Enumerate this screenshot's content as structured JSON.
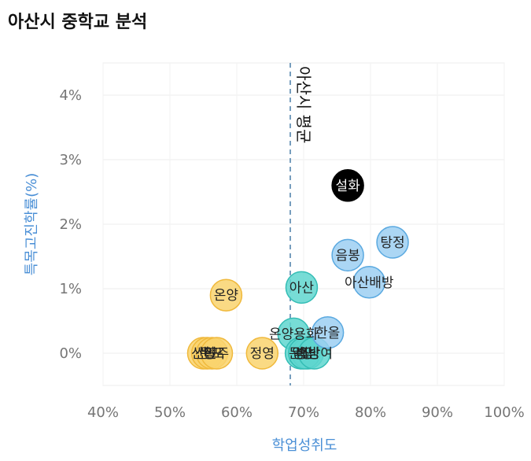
{
  "chart_data": {
    "type": "scatter",
    "title": "아산시 중학교 분석",
    "xlabel": "학업성취도",
    "ylabel": "특목고진학률(%)",
    "xlim": [
      40,
      100
    ],
    "ylim": [
      -0.5,
      4.5
    ],
    "x_ticks": [
      {
        "value": 40,
        "label": "40%"
      },
      {
        "value": 50,
        "label": "50%"
      },
      {
        "value": 60,
        "label": "60%"
      },
      {
        "value": 70,
        "label": "70%"
      },
      {
        "value": 80,
        "label": "80%"
      },
      {
        "value": 90,
        "label": "90%"
      },
      {
        "value": 100,
        "label": "100%"
      }
    ],
    "y_ticks": [
      {
        "value": 0,
        "label": "0%"
      },
      {
        "value": 1,
        "label": "1%"
      },
      {
        "value": 2,
        "label": "2%"
      },
      {
        "value": 3,
        "label": "3%"
      },
      {
        "value": 4,
        "label": "4%"
      }
    ],
    "grid": true,
    "reference_line": {
      "x": 68,
      "label": "아산시 평균"
    },
    "colors": {
      "low": "#f9d36e",
      "low_border": "#f0b93c",
      "mid": "#5fd6cf",
      "mid_border": "#34bdb5",
      "high": "#9ccff2",
      "high_border": "#5aa9e0",
      "top": "#000000",
      "ref": "#4a7ea8"
    },
    "points": [
      {
        "name": "설화",
        "x": 76.6,
        "y": 2.6,
        "group": "top"
      },
      {
        "name": "탕정",
        "x": 83.3,
        "y": 1.72,
        "group": "high"
      },
      {
        "name": "음봉",
        "x": 76.6,
        "y": 1.52,
        "group": "high"
      },
      {
        "name": "아산배방",
        "x": 79.8,
        "y": 1.1,
        "group": "high"
      },
      {
        "name": "아산",
        "x": 69.7,
        "y": 1.02,
        "group": "mid"
      },
      {
        "name": "온양",
        "x": 58.4,
        "y": 0.9,
        "group": "low"
      },
      {
        "name": "온양용화",
        "x": 68.5,
        "y": 0.3,
        "group": "mid"
      },
      {
        "name": "한올",
        "x": 73.6,
        "y": 0.32,
        "group": "high"
      },
      {
        "name": "문장",
        "x": 69.6,
        "y": 0.0,
        "group": "mid"
      },
      {
        "name": "송남",
        "x": 70.6,
        "y": 0.0,
        "group": "mid"
      },
      {
        "name": "영인",
        "x": 70.1,
        "y": 0.0,
        "group": "mid"
      },
      {
        "name": "배방여",
        "x": 71.6,
        "y": 0.0,
        "group": "mid"
      },
      {
        "name": "정영",
        "x": 63.8,
        "y": 0.0,
        "group": "low"
      },
      {
        "name": "신창",
        "x": 55.0,
        "y": 0.0,
        "group": "low"
      },
      {
        "name": "선도",
        "x": 55.6,
        "y": 0.0,
        "group": "low"
      },
      {
        "name": "둔포",
        "x": 56.3,
        "y": 0.0,
        "group": "low"
      },
      {
        "name": "인주",
        "x": 57.0,
        "y": 0.0,
        "group": "low"
      }
    ]
  }
}
